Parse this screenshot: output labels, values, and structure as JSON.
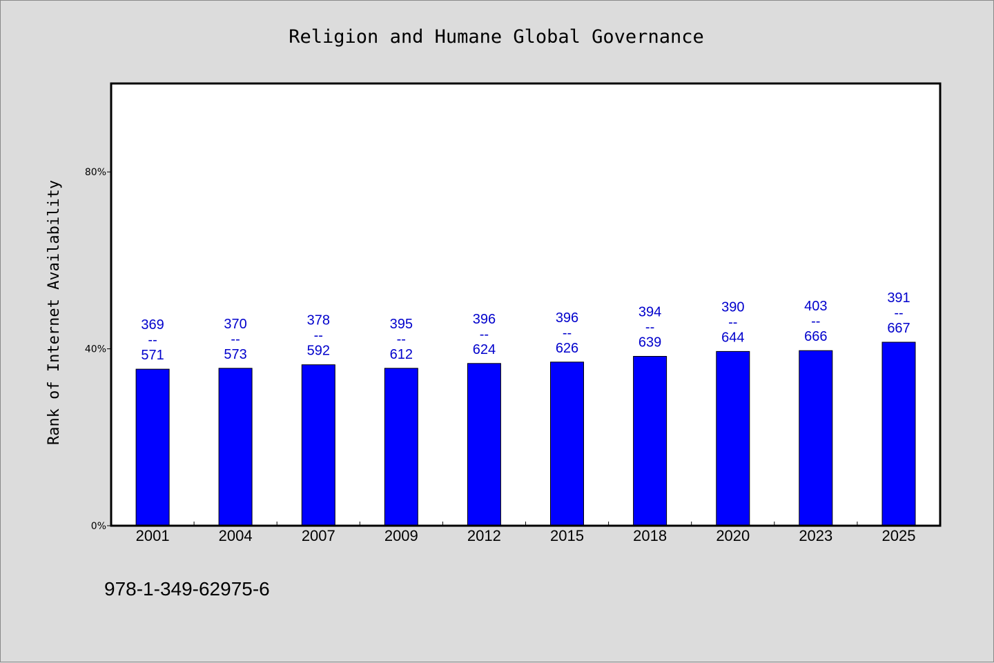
{
  "chart_data": {
    "type": "bar",
    "title": "Religion and Humane Global Governance",
    "ylabel": "Rank of Internet Availability",
    "xlabel": "",
    "ylim": [
      0,
      100
    ],
    "yticks": [
      {
        "value": 0,
        "label": "0%"
      },
      {
        "value": 40,
        "label": "40%"
      },
      {
        "value": 80,
        "label": "80%"
      }
    ],
    "categories": [
      "2001",
      "2004",
      "2007",
      "2009",
      "2012",
      "2015",
      "2018",
      "2020",
      "2023",
      "2025"
    ],
    "values": [
      35.4,
      35.6,
      36.4,
      35.6,
      36.7,
      37.0,
      38.3,
      39.4,
      39.6,
      41.5
    ],
    "data_labels": [
      {
        "top": "369",
        "mid": "--",
        "bottom": "571"
      },
      {
        "top": "370",
        "mid": "--",
        "bottom": "573"
      },
      {
        "top": "378",
        "mid": "--",
        "bottom": "592"
      },
      {
        "top": "395",
        "mid": "--",
        "bottom": "612"
      },
      {
        "top": "396",
        "mid": "--",
        "bottom": "624"
      },
      {
        "top": "396",
        "mid": "--",
        "bottom": "626"
      },
      {
        "top": "394",
        "mid": "--",
        "bottom": "639"
      },
      {
        "top": "390",
        "mid": "--",
        "bottom": "644"
      },
      {
        "top": "403",
        "mid": "--",
        "bottom": "666"
      },
      {
        "top": "391",
        "mid": "--",
        "bottom": "667"
      }
    ],
    "bar_color": "#0000ff",
    "label_color": "#0000cc",
    "background_color": "#dcdcdc",
    "plot_background": "#ffffff",
    "grid": false,
    "legend": "none"
  },
  "footer": {
    "isbn": "978-1-349-62975-6"
  }
}
